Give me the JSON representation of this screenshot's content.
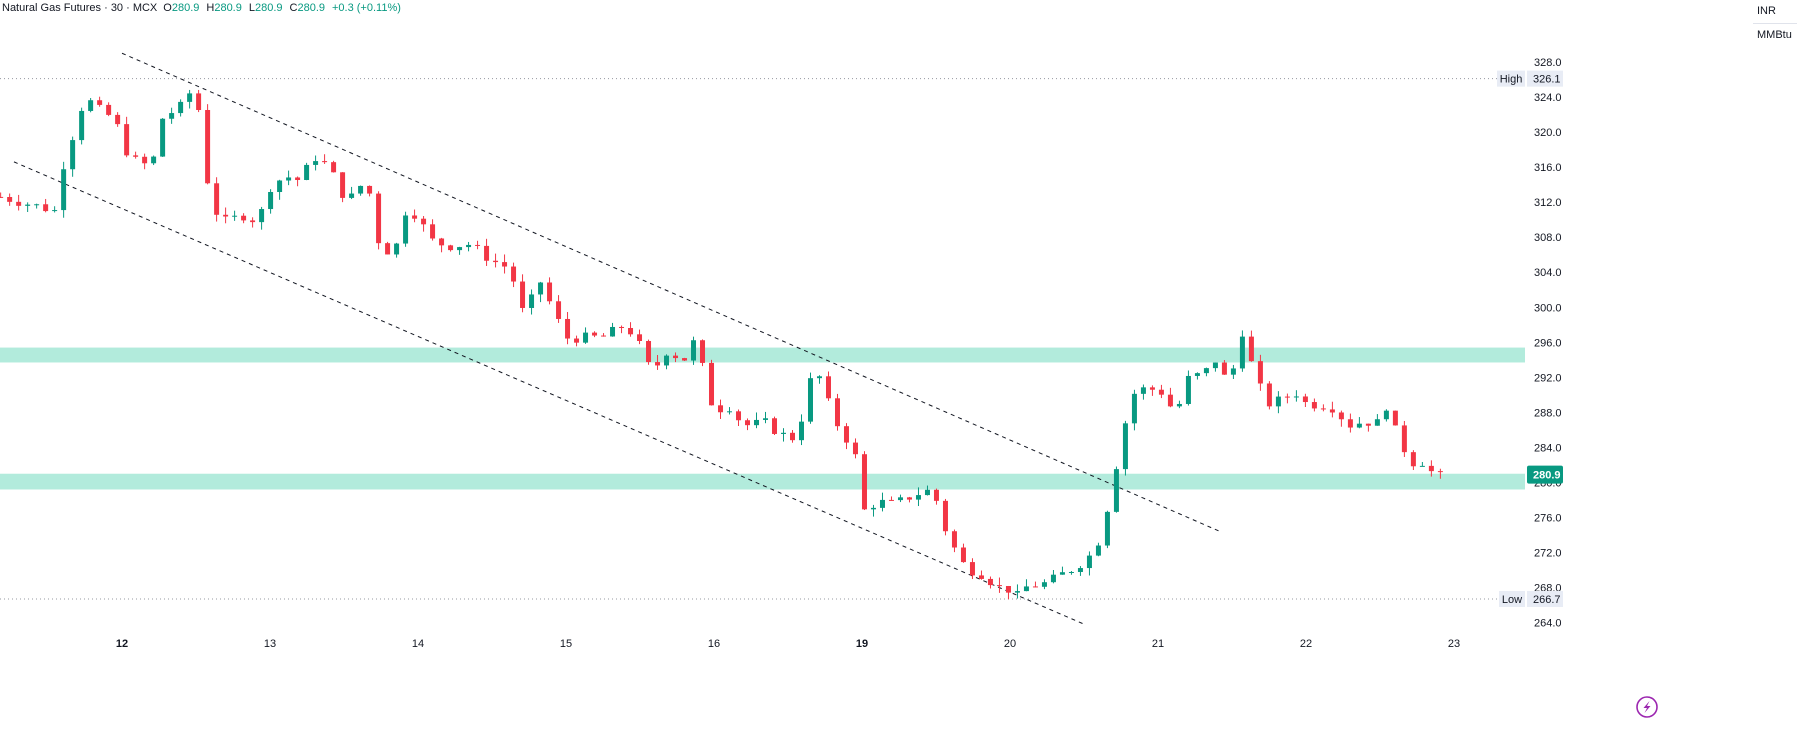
{
  "header": {
    "symbol": "Natural Gas Futures · 30 · MCX",
    "o_label": "O",
    "o_value": "280.9",
    "h_label": "H",
    "h_value": "280.9",
    "l_label": "L",
    "l_value": "280.9",
    "c_label": "C",
    "c_value": "280.9",
    "change": "+0.3 (+0.11%)"
  },
  "unit": {
    "currency": "INR",
    "measure": "MMBtu"
  },
  "colors": {
    "up": "#089981",
    "down": "#f23645",
    "zone": "#b2ebdc",
    "price_tag": "#089981",
    "axis_text": "#131722",
    "grid_dot": "#9598a1",
    "trendline": "#131722"
  },
  "chart_data": {
    "type": "candlestick",
    "y_axis": {
      "ticks": [
        "328.0",
        "324.0",
        "320.0",
        "316.0",
        "312.0",
        "308.0",
        "304.0",
        "300.0",
        "296.0",
        "292.0",
        "288.0",
        "284.0",
        "280.0",
        "276.0",
        "272.0",
        "268.0",
        "264.0"
      ],
      "range": [
        262.5,
        329.5
      ]
    },
    "x_axis": {
      "ticks": [
        {
          "label": "12",
          "bold": true,
          "day_pos": 0
        },
        {
          "label": "13",
          "bold": false,
          "day_pos": 1
        },
        {
          "label": "14",
          "bold": false,
          "day_pos": 2
        },
        {
          "label": "15",
          "bold": false,
          "day_pos": 3
        },
        {
          "label": "16",
          "bold": false,
          "day_pos": 4
        },
        {
          "label": "19",
          "bold": true,
          "day_pos": 5
        },
        {
          "label": "20",
          "bold": false,
          "day_pos": 6
        },
        {
          "label": "21",
          "bold": false,
          "day_pos": 7
        },
        {
          "label": "22",
          "bold": false,
          "day_pos": 8
        },
        {
          "label": "23",
          "bold": false,
          "day_pos": 9
        }
      ],
      "day_range": [
        -0.82,
        9.89
      ]
    },
    "high_line": {
      "label": "High",
      "value": 326.1,
      "value_text": "326.1"
    },
    "low_line": {
      "label": "Low",
      "value": 266.7,
      "value_text": "266.7"
    },
    "last_price": {
      "value": 280.9,
      "text": "280.9"
    },
    "zones": [
      {
        "from": 293.7,
        "to": 295.4
      },
      {
        "from": 279.2,
        "to": 281.0
      }
    ],
    "trendlines": [
      {
        "from": [
          -0.0,
          329.0
        ],
        "to": [
          7.42,
          274.4
        ]
      },
      {
        "from": [
          -0.73,
          316.6
        ],
        "to": [
          6.49,
          263.9
        ]
      }
    ],
    "anchors": [
      [
        -0.82,
        312.6
      ],
      [
        -0.56,
        311.5
      ],
      [
        -0.45,
        311.0
      ],
      [
        -0.4,
        316.0
      ],
      [
        -0.25,
        324.0
      ],
      [
        -0.15,
        322.5
      ],
      [
        -0.05,
        321.5
      ],
      [
        0.05,
        317.0
      ],
      [
        0.2,
        316.0
      ],
      [
        0.28,
        322.0
      ],
      [
        0.38,
        322.5
      ],
      [
        0.46,
        324.5
      ],
      [
        0.52,
        322.5
      ],
      [
        0.6,
        311.5
      ],
      [
        0.7,
        309.8
      ],
      [
        0.82,
        310.5
      ],
      [
        0.92,
        309.8
      ],
      [
        1.0,
        313.7
      ],
      [
        1.1,
        315.0
      ],
      [
        1.2,
        314.5
      ],
      [
        1.3,
        317.2
      ],
      [
        1.4,
        316.0
      ],
      [
        1.52,
        312.0
      ],
      [
        1.6,
        313.5
      ],
      [
        1.65,
        315.0
      ],
      [
        1.75,
        306.2
      ],
      [
        1.85,
        306.8
      ],
      [
        1.92,
        311.2
      ],
      [
        2.0,
        310.5
      ],
      [
        2.08,
        307.7
      ],
      [
        2.2,
        307.0
      ],
      [
        2.35,
        307.2
      ],
      [
        2.45,
        305.9
      ],
      [
        2.55,
        304.9
      ],
      [
        2.62,
        304.5
      ],
      [
        2.72,
        298.8
      ],
      [
        2.82,
        303.2
      ],
      [
        2.9,
        300.2
      ],
      [
        3.0,
        296.5
      ],
      [
        3.1,
        296.5
      ],
      [
        3.25,
        296.6
      ],
      [
        3.4,
        298.0
      ],
      [
        3.48,
        296.3
      ],
      [
        3.58,
        292.5
      ],
      [
        3.7,
        295.5
      ],
      [
        3.78,
        293.5
      ],
      [
        3.88,
        296.5
      ],
      [
        3.95,
        291.0
      ],
      [
        4.0,
        288.2
      ],
      [
        4.1,
        288.8
      ],
      [
        4.2,
        286.5
      ],
      [
        4.35,
        286.8
      ],
      [
        4.45,
        285.5
      ],
      [
        4.55,
        285.0
      ],
      [
        4.62,
        289.0
      ],
      [
        4.68,
        293.8
      ],
      [
        4.75,
        290.0
      ],
      [
        4.85,
        286.0
      ],
      [
        4.95,
        283.8
      ],
      [
        5.0,
        276.6
      ],
      [
        5.1,
        277.8
      ],
      [
        5.22,
        277.5
      ],
      [
        5.35,
        278.6
      ],
      [
        5.48,
        279.2
      ],
      [
        5.58,
        273.8
      ],
      [
        5.7,
        270.3
      ],
      [
        5.82,
        269.5
      ],
      [
        5.92,
        268.0
      ],
      [
        6.0,
        267.8
      ],
      [
        6.05,
        267.0
      ],
      [
        6.12,
        268.2
      ],
      [
        6.25,
        268.5
      ],
      [
        6.35,
        269.5
      ],
      [
        6.45,
        270.4
      ],
      [
        6.55,
        271.8
      ],
      [
        6.62,
        274.0
      ],
      [
        6.68,
        278.8
      ],
      [
        6.75,
        284.5
      ],
      [
        6.82,
        290.0
      ],
      [
        6.92,
        290.8
      ],
      [
        7.02,
        290.4
      ],
      [
        7.12,
        287.8
      ],
      [
        7.22,
        292.5
      ],
      [
        7.3,
        292.0
      ],
      [
        7.38,
        294.2
      ],
      [
        7.45,
        292.0
      ],
      [
        7.52,
        293.2
      ],
      [
        7.58,
        298.0
      ],
      [
        7.65,
        292.0
      ],
      [
        7.75,
        289.0
      ],
      [
        7.85,
        289.5
      ],
      [
        7.92,
        290.5
      ],
      [
        8.0,
        289.0
      ],
      [
        8.1,
        288.9
      ],
      [
        8.2,
        288.5
      ],
      [
        8.28,
        286.5
      ],
      [
        8.4,
        287.0
      ],
      [
        8.48,
        286.7
      ],
      [
        8.55,
        289.0
      ],
      [
        8.62,
        285.0
      ],
      [
        8.72,
        282.3
      ],
      [
        8.8,
        282.4
      ],
      [
        8.88,
        280.4
      ],
      [
        8.94,
        281.0
      ]
    ]
  }
}
